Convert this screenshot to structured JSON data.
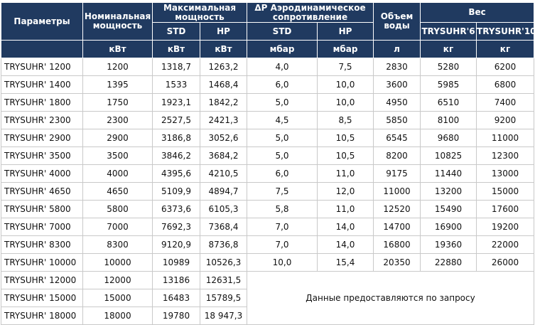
{
  "header": {
    "params": "Параметры",
    "nominal": "Номинальная мощность",
    "max_power": "Максимальная мощность",
    "aero": "ΔP Аэродинамическое сопротивление",
    "water": "Объем воды",
    "weight": "Вес",
    "std": "STD",
    "hp": "HP",
    "w6": "TRYSUHR'6",
    "w10": "TRYSUHR'10",
    "units": {
      "nominal": "кВт",
      "max_std": "кВт",
      "max_hp": "кВт",
      "aero_std": "мбар",
      "aero_hp": "мбар",
      "water": "л",
      "w6": "кг",
      "w10": "кг"
    }
  },
  "rows": [
    [
      "TRYSUHR' 1200",
      "1200",
      "1318,7",
      "1263,2",
      "4,0",
      "7,5",
      "2830",
      "5280",
      "6200"
    ],
    [
      "TRYSUHR' 1400",
      "1395",
      "1533",
      "1468,4",
      "6,0",
      "10,0",
      "3600",
      "5985",
      "6800"
    ],
    [
      "TRYSUHR' 1800",
      "1750",
      "1923,1",
      "1842,2",
      "5,0",
      "10,0",
      "4950",
      "6510",
      "7400"
    ],
    [
      "TRYSUHR' 2300",
      "2300",
      "2527,5",
      "2421,3",
      "4,5",
      "8,5",
      "5850",
      "8100",
      "9200"
    ],
    [
      "TRYSUHR' 2900",
      "2900",
      "3186,8",
      "3052,6",
      "5,0",
      "10,5",
      "6545",
      "9680",
      "11000"
    ],
    [
      "TRYSUHR' 3500",
      "3500",
      "3846,2",
      "3684,2",
      "5,0",
      "10,5",
      "8200",
      "10825",
      "12300"
    ],
    [
      "TRYSUHR' 4000",
      "4000",
      "4395,6",
      "4210,5",
      "6,0",
      "11,0",
      "9175",
      "11440",
      "13000"
    ],
    [
      "TRYSUHR' 4650",
      "4650",
      "5109,9",
      "4894,7",
      "7,5",
      "12,0",
      "11000",
      "13200",
      "15000"
    ],
    [
      "TRYSUHR' 5800",
      "5800",
      "6373,6",
      "6105,3",
      "5,8",
      "11,0",
      "12520",
      "15490",
      "17600"
    ],
    [
      "TRYSUHR' 7000",
      "7000",
      "7692,3",
      "7368,4",
      "7,0",
      "14,0",
      "14700",
      "16900",
      "19200"
    ],
    [
      "TRYSUHR' 8300",
      "8300",
      "9120,9",
      "8736,8",
      "7,0",
      "14,0",
      "16800",
      "19360",
      "22000"
    ],
    [
      "TRYSUHR' 10000",
      "10000",
      "10989",
      "10526,3",
      "10,0",
      "15,4",
      "20350",
      "22880",
      "26000"
    ]
  ],
  "rows_partial": [
    [
      "TRYSUHR' 12000",
      "12000",
      "13186",
      "12631,5"
    ],
    [
      "TRYSUHR' 15000",
      "15000",
      "16483",
      "15789,5"
    ],
    [
      "TRYSUHR' 18000",
      "18000",
      "19780",
      "18 947,3"
    ]
  ],
  "note": "Данные предоставляются по запросу"
}
